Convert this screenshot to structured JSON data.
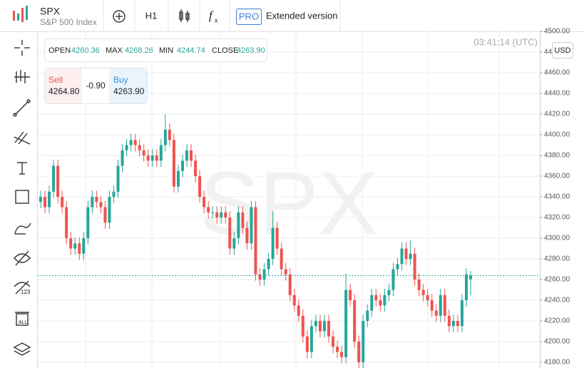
{
  "ui": {
    "symbol": "SPX",
    "symbol_name": "S&P 500 Index",
    "timeframe": "H1",
    "pro": "PRO",
    "extended": "Extended version",
    "ohlc": {
      "open_label": "OPEN",
      "open": "4260.36",
      "max_label": "MAX",
      "max": "4268.26",
      "min_label": "MIN",
      "min": "4244.74",
      "close_label": "CLOSE",
      "close": "4263.90"
    },
    "trade": {
      "sell_label": "Sell",
      "sell": "4264.80",
      "spread": "-0.90",
      "buy_label": "Buy",
      "buy": "4263.90"
    },
    "clock": "03:41:14 (UTC)",
    "currency": "USD"
  },
  "chart_data": {
    "type": "candlestick",
    "watermark": "SPX",
    "up_color": "#26a69a",
    "down_color": "#ef5350",
    "grid": true,
    "ylim": [
      4174.5,
      4500
    ],
    "yticks": [
      {
        "value": 4180,
        "label": "4180.00"
      },
      {
        "value": 4200,
        "label": "4200.00"
      },
      {
        "value": 4220,
        "label": "4220.00"
      },
      {
        "value": 4240,
        "label": "4240.00"
      },
      {
        "value": 4260,
        "label": "4260.00"
      },
      {
        "value": 4280,
        "label": "4280.00"
      },
      {
        "value": 4300,
        "label": "4300.00"
      },
      {
        "value": 4320,
        "label": "4320.00"
      },
      {
        "value": 4340,
        "label": "4340.00"
      },
      {
        "value": 4360,
        "label": "4360.00"
      },
      {
        "value": 4380,
        "label": "4380.00"
      },
      {
        "value": 4400,
        "label": "4400.00"
      },
      {
        "value": 4420,
        "label": "4420.00"
      },
      {
        "value": 4440,
        "label": "4440.00"
      },
      {
        "value": 4460,
        "label": "4460.00"
      },
      {
        "value": 4480,
        "label": "4480.00"
      },
      {
        "value": 4500,
        "label": "4500.00"
      }
    ],
    "open": [
      4335,
      4340,
      4330,
      4345,
      4370,
      4340,
      4330,
      4300,
      4290,
      4295,
      4285,
      4300,
      4330,
      4340,
      4335,
      4330,
      4315,
      4340,
      4345,
      4370,
      4385,
      4390,
      4395,
      4390,
      4385,
      4380,
      4375,
      4380,
      4375,
      4390,
      4405,
      4395,
      4350,
      4365,
      4375,
      4385,
      4375,
      4360,
      4340,
      4330,
      4325,
      4325,
      4320,
      4325,
      4320,
      4290,
      4300,
      4325,
      4310,
      4295,
      4330,
      4265,
      4260,
      4270,
      4280,
      4310,
      4290,
      4270,
      4265,
      4245,
      4235,
      4225,
      4205,
      4190,
      4215,
      4220,
      4210,
      4220,
      4205,
      4195,
      4190,
      4185,
      4250,
      4240,
      4200,
      4180,
      4220,
      4230,
      4245,
      4240,
      4235,
      4245,
      4250,
      4270,
      4275,
      4290,
      4280,
      4285,
      4260,
      4250,
      4245,
      4240,
      4230,
      4225,
      4245,
      4225,
      4215,
      4220,
      4215,
      4240,
      4260.36
    ],
    "high": [
      4346,
      4346,
      4351,
      4376,
      4376,
      4346,
      4336,
      4306,
      4301,
      4301,
      4306,
      4336,
      4346,
      4346,
      4341,
      4336,
      4346,
      4351,
      4376,
      4391,
      4396,
      4401,
      4401,
      4396,
      4391,
      4386,
      4386,
      4386,
      4396,
      4420,
      4411,
      4401,
      4371,
      4381,
      4391,
      4391,
      4381,
      4366,
      4346,
      4336,
      4331,
      4331,
      4331,
      4331,
      4326,
      4306,
      4331,
      4331,
      4316,
      4336,
      4336,
      4271,
      4276,
      4286,
      4326,
      4316,
      4296,
      4276,
      4271,
      4251,
      4241,
      4231,
      4211,
      4221,
      4226,
      4226,
      4226,
      4226,
      4211,
      4201,
      4196,
      4266,
      4256,
      4246,
      4206,
      4226,
      4236,
      4251,
      4251,
      4246,
      4251,
      4256,
      4276,
      4281,
      4296,
      4296,
      4298,
      4291,
      4266,
      4256,
      4251,
      4246,
      4236,
      4251,
      4251,
      4231,
      4226,
      4226,
      4246,
      4271,
      4268.26
    ],
    "low": [
      4329,
      4324,
      4324,
      4339,
      4334,
      4324,
      4294,
      4284,
      4284,
      4279,
      4279,
      4294,
      4324,
      4329,
      4324,
      4309,
      4309,
      4334,
      4339,
      4364,
      4379,
      4384,
      4384,
      4379,
      4374,
      4369,
      4369,
      4369,
      4369,
      4384,
      4389,
      4344,
      4344,
      4359,
      4369,
      4369,
      4354,
      4334,
      4324,
      4319,
      4319,
      4314,
      4314,
      4314,
      4284,
      4284,
      4294,
      4304,
      4289,
      4289,
      4259,
      4254,
      4254,
      4264,
      4274,
      4284,
      4264,
      4259,
      4239,
      4229,
      4219,
      4199,
      4184,
      4184,
      4209,
      4204,
      4204,
      4199,
      4189,
      4184,
      4179,
      4179,
      4234,
      4194,
      4174,
      4174,
      4214,
      4224,
      4234,
      4229,
      4229,
      4239,
      4244,
      4264,
      4269,
      4274,
      4274,
      4254,
      4244,
      4239,
      4234,
      4224,
      4219,
      4219,
      4219,
      4209,
      4209,
      4209,
      4209,
      4234,
      4244.74
    ],
    "close": [
      4340,
      4330,
      4345,
      4370,
      4340,
      4330,
      4300,
      4290,
      4295,
      4285,
      4300,
      4330,
      4340,
      4335,
      4330,
      4315,
      4340,
      4345,
      4370,
      4385,
      4390,
      4395,
      4390,
      4385,
      4380,
      4375,
      4380,
      4375,
      4390,
      4405,
      4395,
      4350,
      4365,
      4375,
      4385,
      4375,
      4360,
      4340,
      4330,
      4325,
      4325,
      4320,
      4325,
      4320,
      4290,
      4300,
      4325,
      4310,
      4295,
      4330,
      4265,
      4260,
      4270,
      4280,
      4310,
      4290,
      4270,
      4265,
      4245,
      4235,
      4225,
      4205,
      4190,
      4215,
      4220,
      4210,
      4220,
      4205,
      4195,
      4190,
      4185,
      4250,
      4240,
      4200,
      4180,
      4220,
      4230,
      4245,
      4240,
      4235,
      4245,
      4250,
      4270,
      4275,
      4290,
      4280,
      4285,
      4260,
      4250,
      4245,
      4240,
      4230,
      4225,
      4245,
      4225,
      4215,
      4220,
      4215,
      4240,
      4265,
      4263.9
    ]
  }
}
